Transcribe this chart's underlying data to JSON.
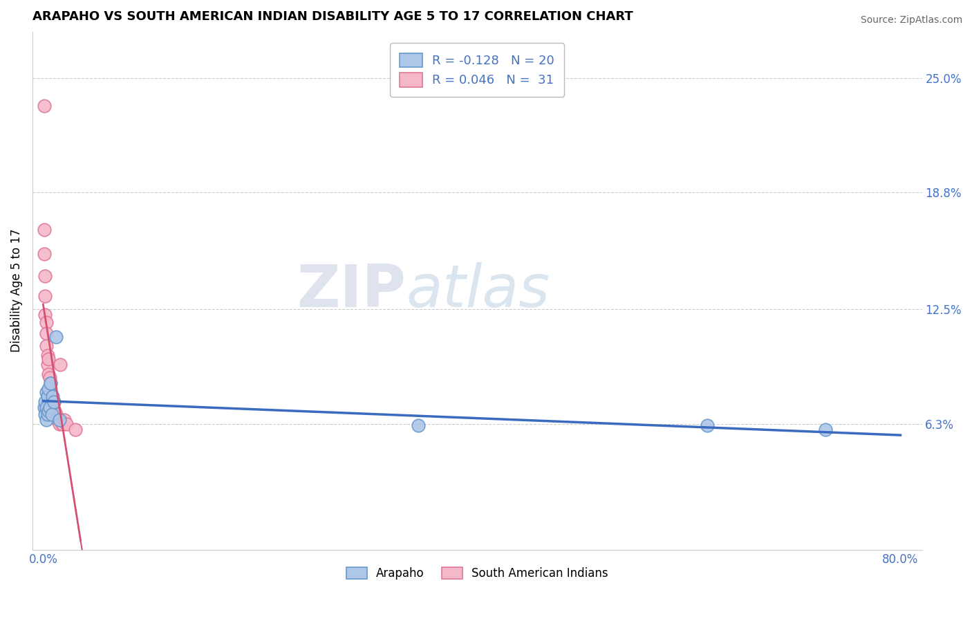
{
  "title": "ARAPAHO VS SOUTH AMERICAN INDIAN DISABILITY AGE 5 TO 17 CORRELATION CHART",
  "source": "Source: ZipAtlas.com",
  "ylabel": "Disability Age 5 to 17",
  "xlim": [
    -0.01,
    0.82
  ],
  "ylim": [
    -0.005,
    0.275
  ],
  "yticks": [
    0.063,
    0.125,
    0.188,
    0.25
  ],
  "ytick_labels": [
    "6.3%",
    "12.5%",
    "18.8%",
    "25.0%"
  ],
  "xticks": [
    0.0,
    0.8
  ],
  "xtick_labels": [
    "0.0%",
    "80.0%"
  ],
  "arapaho_color": "#aec6e8",
  "arapaho_edge_color": "#6699cc",
  "south_american_color": "#f4b8c8",
  "south_american_edge_color": "#e07898",
  "trend_arapaho_color": "#3a6bbf",
  "trend_south_american_color": "#d45070",
  "legend_R_arapaho": "R = -0.128",
  "legend_N_arapaho": "N = 20",
  "legend_R_south": "R = 0.046",
  "legend_N_south": "N =  31",
  "watermark_zip": "ZIP",
  "watermark_atlas": "atlas",
  "arapaho_x": [
    0.001,
    0.002,
    0.002,
    0.003,
    0.003,
    0.003,
    0.004,
    0.004,
    0.005,
    0.005,
    0.006,
    0.007,
    0.008,
    0.009,
    0.01,
    0.012,
    0.015,
    0.35,
    0.62,
    0.73
  ],
  "arapaho_y": [
    0.072,
    0.075,
    0.068,
    0.08,
    0.072,
    0.065,
    0.078,
    0.068,
    0.082,
    0.07,
    0.072,
    0.085,
    0.068,
    0.078,
    0.075,
    0.11,
    0.065,
    0.062,
    0.062,
    0.06
  ],
  "south_x": [
    0.001,
    0.001,
    0.001,
    0.002,
    0.002,
    0.002,
    0.003,
    0.003,
    0.003,
    0.004,
    0.004,
    0.005,
    0.005,
    0.006,
    0.006,
    0.007,
    0.007,
    0.008,
    0.009,
    0.009,
    0.01,
    0.01,
    0.011,
    0.012,
    0.013,
    0.015,
    0.016,
    0.018,
    0.02,
    0.022,
    0.03
  ],
  "south_y": [
    0.235,
    0.168,
    0.155,
    0.143,
    0.132,
    0.122,
    0.118,
    0.112,
    0.105,
    0.1,
    0.095,
    0.098,
    0.09,
    0.088,
    0.082,
    0.085,
    0.08,
    0.078,
    0.075,
    0.072,
    0.075,
    0.068,
    0.07,
    0.068,
    0.065,
    0.063,
    0.095,
    0.063,
    0.065,
    0.063,
    0.06
  ],
  "grid_color": "#cccccc",
  "spine_color": "#cccccc",
  "tick_color": "#4472c4",
  "title_fontsize": 13,
  "tick_fontsize": 12,
  "ylabel_fontsize": 12
}
